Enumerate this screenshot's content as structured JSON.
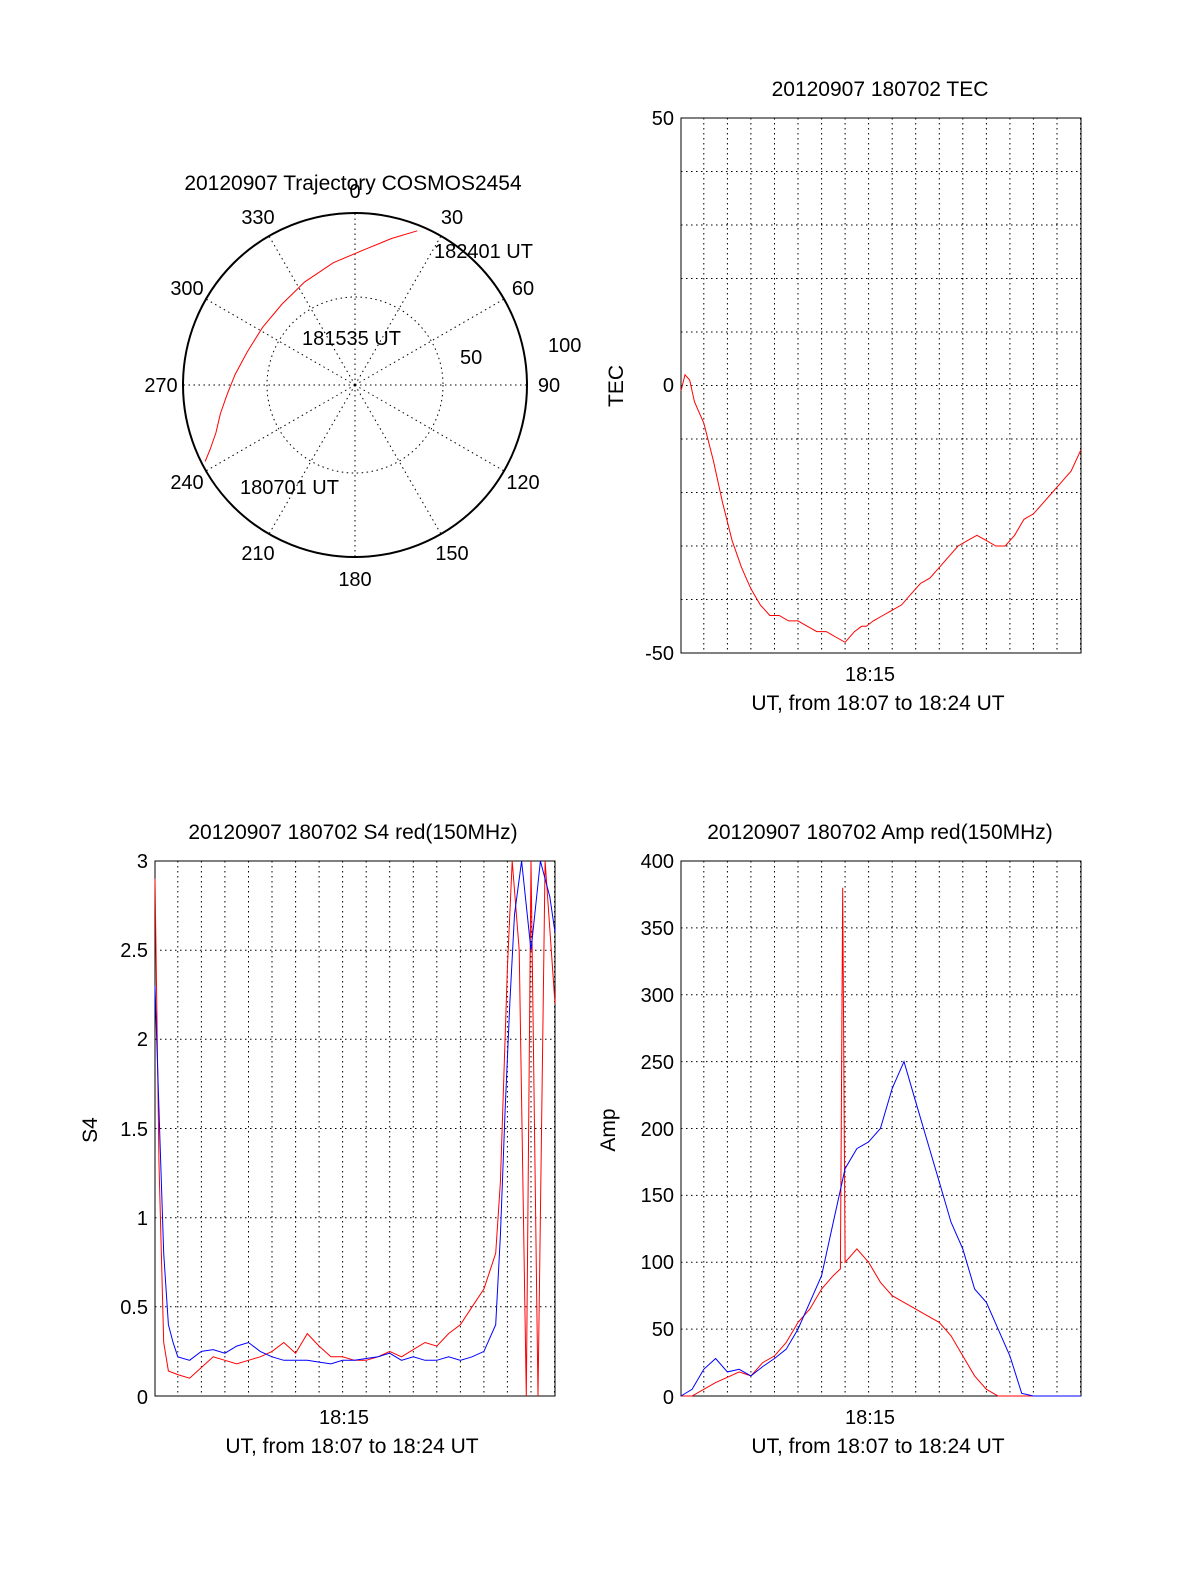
{
  "chart_data": [
    {
      "type": "polar",
      "title": "20120907 Trajectory COSMOS2454",
      "azimuth_labels": [
        "0",
        "30",
        "60",
        "90",
        "120",
        "150",
        "180",
        "210",
        "240",
        "270",
        "300",
        "330"
      ],
      "radius_labels": [
        "50",
        "100"
      ],
      "annotations": [
        "182401 UT",
        "181535 UT",
        "180701 UT"
      ],
      "trajectory": {
        "azimuth_deg": [
          243,
          246,
          251,
          258,
          266,
          275,
          287,
          302,
          318,
          334,
          350,
          4,
          14,
          22
        ],
        "zenith_deg": [
          88,
          83,
          77,
          72,
          67,
          63,
          59,
          57,
          57,
          60,
          65,
          71,
          79,
          87
        ]
      },
      "colors": {
        "trajectory": "#ff0000"
      }
    },
    {
      "type": "line",
      "title": "20120907 180702 TEC",
      "ylabel": "TEC",
      "xlabel": "UT, from 18:07 to 18:24 UT",
      "x_tick_labels": [
        "18:15"
      ],
      "y_tick_labels": [
        "50",
        "0",
        "-50"
      ],
      "ylim": [
        -50,
        50
      ],
      "xlim_minutes": [
        7.03,
        24.02
      ],
      "series": [
        {
          "color": "#ff0000",
          "x": [
            7.03,
            7.2,
            7.4,
            7.6,
            8.0,
            8.4,
            8.8,
            9.2,
            9.6,
            10.0,
            10.4,
            10.8,
            11.2,
            11.6,
            12.0,
            12.4,
            12.8,
            13.2,
            13.6,
            14.0,
            14.4,
            14.7,
            14.9,
            15.2,
            15.6,
            16.0,
            16.4,
            16.8,
            17.2,
            17.6,
            18.0,
            18.4,
            18.8,
            19.2,
            19.6,
            20.0,
            20.4,
            20.8,
            21.2,
            21.6,
            22.0,
            22.4,
            22.8,
            23.2,
            23.6,
            24.02
          ],
          "y": [
            -1,
            2,
            1,
            -3,
            -7,
            -14,
            -22,
            -29,
            -34,
            -38,
            -41,
            -43,
            -43,
            -44,
            -44,
            -45,
            -46,
            -46,
            -47,
            -48,
            -46,
            -45,
            -45,
            -44,
            -43,
            -42,
            -41,
            -39,
            -37,
            -36,
            -34,
            -32,
            -30,
            -29,
            -28,
            -29,
            -30,
            -30,
            -28,
            -25,
            -24,
            -22,
            -20,
            -18,
            -16,
            -12
          ]
        }
      ]
    },
    {
      "type": "line",
      "title": "20120907 180702 S4 red(150MHz)",
      "ylabel": "S4",
      "xlabel": "UT, from 18:07 to 18:24 UT",
      "x_tick_labels": [
        "18:15"
      ],
      "y_tick_labels": [
        "3",
        "2.5",
        "2",
        "1.5",
        "1",
        "0.5",
        "0"
      ],
      "ylim": [
        0,
        3
      ],
      "xlim_minutes": [
        7.03,
        24.02
      ],
      "series": [
        {
          "color": "#ff0000",
          "x": [
            7.03,
            7.2,
            7.4,
            7.6,
            8.0,
            8.5,
            9.0,
            9.5,
            10.0,
            10.5,
            11.0,
            11.5,
            12.0,
            12.5,
            13.0,
            13.5,
            14.0,
            14.5,
            15.0,
            15.5,
            16.0,
            16.5,
            17.0,
            17.5,
            18.0,
            18.5,
            19.0,
            19.5,
            20.0,
            20.5,
            21.0,
            21.5,
            21.7,
            22.0,
            22.2,
            22.5,
            22.8,
            23.0,
            23.3,
            23.6,
            24.02
          ],
          "y": [
            2.9,
            1.3,
            0.3,
            0.14,
            0.12,
            0.1,
            0.16,
            0.22,
            0.2,
            0.18,
            0.2,
            0.22,
            0.25,
            0.3,
            0.24,
            0.35,
            0.28,
            0.22,
            0.22,
            0.2,
            0.2,
            0.22,
            0.25,
            0.22,
            0.26,
            0.3,
            0.28,
            0.35,
            0.4,
            0.5,
            0.6,
            0.8,
            1.2,
            2.4,
            3.0,
            2.5,
            0.0,
            3.0,
            0.0,
            3.0,
            2.2
          ]
        },
        {
          "color": "#0000ff",
          "x": [
            7.03,
            7.2,
            7.4,
            7.6,
            7.8,
            8.0,
            8.5,
            9.0,
            9.5,
            10.0,
            10.5,
            11.0,
            11.5,
            12.0,
            12.5,
            13.0,
            13.5,
            14.0,
            14.5,
            15.0,
            15.5,
            16.0,
            16.5,
            17.0,
            17.5,
            18.0,
            18.5,
            19.0,
            19.5,
            20.0,
            20.5,
            21.0,
            21.5,
            21.7,
            21.9,
            22.1,
            22.3,
            22.6,
            23.0,
            23.4,
            23.8,
            24.02
          ],
          "y": [
            2.3,
            1.6,
            0.8,
            0.4,
            0.3,
            0.22,
            0.2,
            0.25,
            0.26,
            0.24,
            0.28,
            0.3,
            0.25,
            0.22,
            0.2,
            0.2,
            0.2,
            0.19,
            0.18,
            0.2,
            0.2,
            0.21,
            0.22,
            0.24,
            0.2,
            0.22,
            0.2,
            0.2,
            0.22,
            0.2,
            0.22,
            0.25,
            0.4,
            0.9,
            1.6,
            2.2,
            2.7,
            3.0,
            2.5,
            3.0,
            2.8,
            2.6
          ]
        }
      ]
    },
    {
      "type": "line",
      "title": "20120907 180702 Amp red(150MHz)",
      "ylabel": "Amp",
      "xlabel": "UT, from 18:07 to 18:24 UT",
      "x_tick_labels": [
        "18:15"
      ],
      "y_tick_labels": [
        "400",
        "350",
        "300",
        "250",
        "200",
        "150",
        "100",
        "50",
        "0"
      ],
      "ylim": [
        0,
        400
      ],
      "xlim_minutes": [
        7.03,
        24.02
      ],
      "series": [
        {
          "color": "#ff0000",
          "x": [
            7.03,
            7.5,
            8.0,
            8.5,
            9.0,
            9.5,
            10.0,
            10.5,
            11.0,
            11.5,
            12.0,
            12.5,
            13.0,
            13.5,
            13.8,
            13.9,
            14.0,
            14.5,
            15.0,
            15.5,
            16.0,
            16.5,
            17.0,
            17.5,
            18.0,
            18.5,
            19.0,
            19.5,
            20.0,
            20.5,
            21.0,
            21.5,
            22.0,
            22.5,
            23.0,
            23.5,
            24.02
          ],
          "y": [
            0,
            0,
            5,
            10,
            14,
            18,
            15,
            25,
            30,
            40,
            55,
            65,
            80,
            90,
            95,
            380,
            100,
            110,
            100,
            85,
            75,
            70,
            65,
            60,
            55,
            45,
            30,
            15,
            5,
            0,
            0,
            0,
            0,
            0,
            0,
            0,
            0
          ]
        },
        {
          "color": "#0000ff",
          "x": [
            7.03,
            7.5,
            8.0,
            8.5,
            9.0,
            9.5,
            10.0,
            10.5,
            11.0,
            11.5,
            12.0,
            12.5,
            13.0,
            13.5,
            14.0,
            14.5,
            15.0,
            15.5,
            16.0,
            16.5,
            17.0,
            17.5,
            18.0,
            18.5,
            19.0,
            19.5,
            20.0,
            20.5,
            21.0,
            21.5,
            22.0,
            22.5,
            23.0,
            23.5,
            24.02
          ],
          "y": [
            0,
            5,
            20,
            28,
            18,
            20,
            15,
            22,
            28,
            35,
            50,
            70,
            90,
            130,
            170,
            185,
            190,
            200,
            230,
            250,
            220,
            190,
            160,
            130,
            110,
            80,
            70,
            50,
            30,
            2,
            0,
            0,
            0,
            0,
            0
          ]
        }
      ]
    }
  ]
}
